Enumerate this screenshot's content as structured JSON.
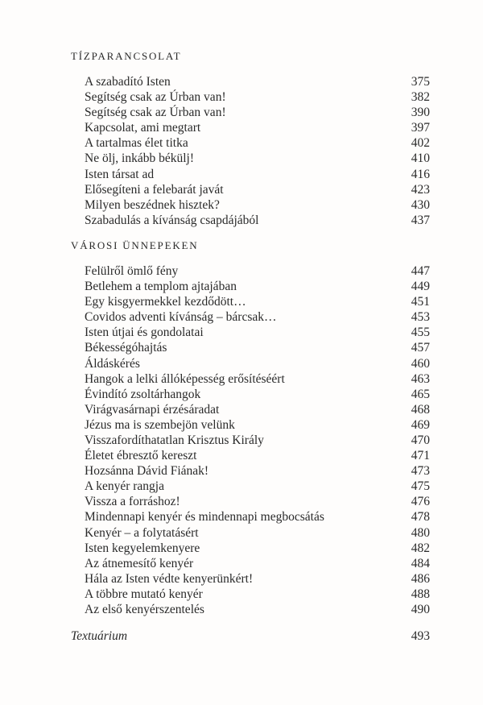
{
  "page": {
    "background": "#fefdfc",
    "text_color": "#2a2a2a"
  },
  "toc": {
    "sections": [
      {
        "title": "TÍZPARANCSOLAT",
        "entries": [
          {
            "title": "A szabadító Isten",
            "page": "375"
          },
          {
            "title": "Segítség csak az Úrban van!",
            "page": "382"
          },
          {
            "title": "Segítség csak az Úrban van!",
            "page": "390"
          },
          {
            "title": "Kapcsolat, ami megtart",
            "page": "397"
          },
          {
            "title": "A tartalmas élet titka",
            "page": "402"
          },
          {
            "title": "Ne ölj, inkább békülj!",
            "page": "410"
          },
          {
            "title": "Isten társat ad",
            "page": "416"
          },
          {
            "title": "Elősegíteni a felebarát javát",
            "page": "423"
          },
          {
            "title": "Milyen beszédnek hisztek?",
            "page": "430"
          },
          {
            "title": "Szabadulás a kívánság csapdájából",
            "page": "437"
          }
        ]
      },
      {
        "title": "VÁROSI ÜNNEPEKEN",
        "entries": [
          {
            "title": "Felülről ömlő fény",
            "page": "447"
          },
          {
            "title": "Betlehem a templom ajtajában",
            "page": "449"
          },
          {
            "title": "Egy kisgyermekkel kezdődött…",
            "page": "451"
          },
          {
            "title": "Covidos adventi kívánság – bárcsak…",
            "page": "453"
          },
          {
            "title": "Isten útjai és gondolatai",
            "page": "455"
          },
          {
            "title": "Békességóhajtás",
            "page": "457"
          },
          {
            "title": "Áldáskérés",
            "page": "460"
          },
          {
            "title": "Hangok a lelki állóképesség erősítéséért",
            "page": "463"
          },
          {
            "title": "Évindító zsoltárhangok",
            "page": "465"
          },
          {
            "title": "Virágvasárnapi érzésáradat",
            "page": "468"
          },
          {
            "title": "Jézus ma is szembejön velünk",
            "page": "469"
          },
          {
            "title": "Visszafordíthatatlan Krisztus Király",
            "page": "470"
          },
          {
            "title": "Életet ébresztő kereszt",
            "page": "471"
          },
          {
            "title": "Hozsánna Dávid Fiának!",
            "page": "473"
          },
          {
            "title": "A kenyér rangja",
            "page": "475"
          },
          {
            "title": "Vissza a forráshoz!",
            "page": "476"
          },
          {
            "title": "Mindennapi kenyér és mindennapi megbocsátás",
            "page": "478"
          },
          {
            "title": "Kenyér – a folytatásért",
            "page": "480"
          },
          {
            "title": "Isten kegyelemkenyere",
            "page": "482"
          },
          {
            "title": "Az átnemesítő kenyér",
            "page": "484"
          },
          {
            "title": "Hála az Isten védte kenyerünkért!",
            "page": "486"
          },
          {
            "title": "A többre mutató kenyér",
            "page": "488"
          },
          {
            "title": "Az első kenyérszentelés",
            "page": "490"
          }
        ]
      }
    ],
    "footer_entry": {
      "title": "Textuárium",
      "page": "493"
    }
  }
}
